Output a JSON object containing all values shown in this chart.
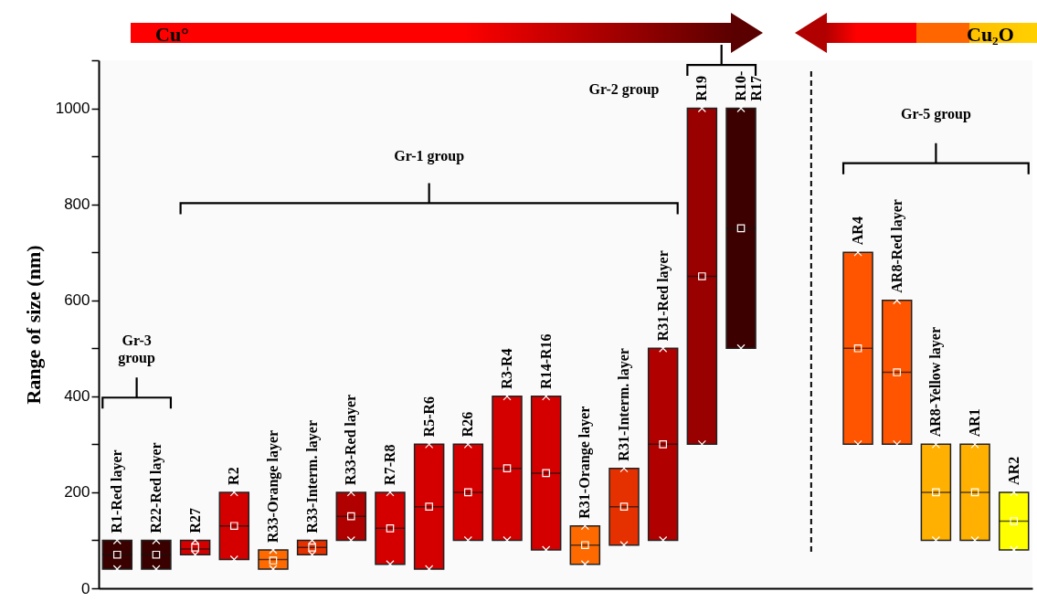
{
  "chart_data": {
    "type": "box",
    "ylabel": "Range of size (nm)",
    "categories": [
      "R1-Red layer",
      "R22-Red layer",
      "R27",
      "R2",
      "R33-Orange layer",
      "R33-Interm. layer",
      "R33-Red layer",
      "R7-R8",
      "R5-R6",
      "R26",
      "R3-R4",
      "R14-R16",
      "R31-Orange layer",
      "R31-Interm. layer",
      "R31-Red layer",
      "R19",
      "R10-\nR17",
      null,
      null,
      "AR4",
      "AR8-Red layer",
      "AR8-Yellow layer",
      "AR1",
      "AR2"
    ],
    "boxes": [
      {
        "low": 40,
        "q1": 40,
        "median": 70,
        "q3": 100,
        "high": 100,
        "mean": 70
      },
      {
        "low": 40,
        "q1": 40,
        "median": 70,
        "q3": 100,
        "high": 100,
        "mean": 70
      },
      {
        "low": 70,
        "q1": 70,
        "median": 82,
        "q3": 100,
        "high": 100,
        "mean": 85
      },
      {
        "low": 60,
        "q1": 60,
        "median": 130,
        "q3": 200,
        "high": 200,
        "mean": 130
      },
      {
        "low": 40,
        "q1": 40,
        "median": 60,
        "q3": 80,
        "high": 80,
        "mean": 58
      },
      {
        "low": 70,
        "q1": 70,
        "median": 85,
        "q3": 100,
        "high": 100,
        "mean": 85
      },
      {
        "low": 100,
        "q1": 100,
        "median": 150,
        "q3": 200,
        "high": 200,
        "mean": 150
      },
      {
        "low": 50,
        "q1": 50,
        "median": 125,
        "q3": 200,
        "high": 200,
        "mean": 125
      },
      {
        "low": 40,
        "q1": 40,
        "median": 170,
        "q3": 300,
        "high": 300,
        "mean": 170
      },
      {
        "low": 100,
        "q1": 100,
        "median": 200,
        "q3": 300,
        "high": 300,
        "mean": 200
      },
      {
        "low": 100,
        "q1": 100,
        "median": 250,
        "q3": 400,
        "high": 400,
        "mean": 250
      },
      {
        "low": 80,
        "q1": 80,
        "median": 240,
        "q3": 400,
        "high": 400,
        "mean": 240
      },
      {
        "low": 50,
        "q1": 50,
        "median": 90,
        "q3": 130,
        "high": 130,
        "mean": 90
      },
      {
        "low": 90,
        "q1": 90,
        "median": 170,
        "q3": 250,
        "high": 250,
        "mean": 170
      },
      {
        "low": 100,
        "q1": 100,
        "median": 300,
        "q3": 500,
        "high": 500,
        "mean": 300
      },
      {
        "low": 300,
        "q1": 300,
        "median": 650,
        "q3": 1000,
        "high": 1000,
        "mean": 650
      },
      {
        "low": 500,
        "q1": 500,
        "median": 750,
        "q3": 1000,
        "high": 1000,
        "mean": 750
      },
      null,
      null,
      {
        "low": 300,
        "q1": 300,
        "median": 500,
        "q3": 700,
        "high": 700,
        "mean": 500
      },
      {
        "low": 300,
        "q1": 300,
        "median": 450,
        "q3": 600,
        "high": 600,
        "mean": 450
      },
      {
        "low": 100,
        "q1": 100,
        "median": 200,
        "q3": 300,
        "high": 300,
        "mean": 200
      },
      {
        "low": 100,
        "q1": 100,
        "median": 200,
        "q3": 300,
        "high": 300,
        "mean": 200
      },
      {
        "low": 80,
        "q1": 80,
        "median": 140,
        "q3": 200,
        "high": 200,
        "mean": 140
      }
    ],
    "colors": [
      "#3a0000",
      "#3a0000",
      "#d40000",
      "#d40000",
      "#ff6a00",
      "#e53000",
      "#b00000",
      "#d40000",
      "#d40000",
      "#d40000",
      "#d40000",
      "#d40000",
      "#ff6a00",
      "#e53000",
      "#b00000",
      "#990000",
      "#3d0000",
      null,
      null,
      "#ff5500",
      "#ff5500",
      "#ffb000",
      "#ffb000",
      "#ffff00"
    ],
    "ylim": [
      0,
      1100
    ],
    "yticks": [
      0,
      {
        "value": 100,
        "label": null
      },
      200,
      {
        "value": 300,
        "label": null
      },
      400,
      {
        "value": 500,
        "label": null
      },
      600,
      {
        "value": 700,
        "label": null
      },
      800,
      {
        "value": 900,
        "label": null
      },
      1000,
      {
        "value": 1100,
        "label": null
      }
    ],
    "annotations": [
      "Cu°",
      "Cu₂O",
      "Gr-3\ngroup",
      "Gr-1 group",
      "Gr-2 group",
      "Gr-5 group"
    ]
  }
}
